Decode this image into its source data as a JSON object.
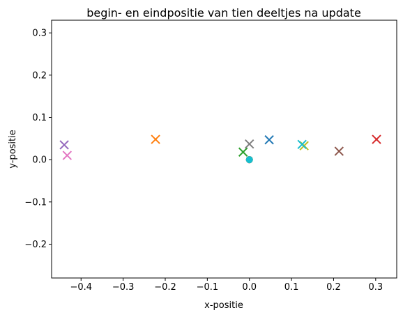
{
  "chart_data": {
    "type": "scatter",
    "title": "begin- en eindpositie van tien deeltjes na update",
    "xlabel": "x-positie",
    "ylabel": "y-positie",
    "xlim": [
      -0.47,
      0.35
    ],
    "ylim": [
      -0.28,
      0.33
    ],
    "grid": false,
    "x_ticks": [
      -0.4,
      -0.3,
      -0.2,
      -0.1,
      0.0,
      0.1,
      0.2,
      0.3
    ],
    "x_tick_labels": [
      "−0.4",
      "−0.3",
      "−0.2",
      "−0.1",
      "0.0",
      "0.1",
      "0.2",
      "0.3"
    ],
    "y_ticks": [
      -0.2,
      -0.1,
      0.0,
      0.1,
      0.2,
      0.3
    ],
    "y_tick_labels": [
      "−0.2",
      "−0.1",
      "0.0",
      "0.1",
      "0.2",
      "0.3"
    ],
    "series": [
      {
        "color": "#1f77b4",
        "start": [
          0.0,
          0.0
        ],
        "end": [
          0.047,
          0.047
        ]
      },
      {
        "color": "#ff7f0e",
        "start": [
          0.0,
          0.0
        ],
        "end": [
          -0.223,
          0.048
        ]
      },
      {
        "color": "#2ca02c",
        "start": [
          0.0,
          0.0
        ],
        "end": [
          -0.015,
          0.018
        ]
      },
      {
        "color": "#d62728",
        "start": [
          0.0,
          0.0
        ],
        "end": [
          0.302,
          0.048
        ]
      },
      {
        "color": "#9467bd",
        "start": [
          0.0,
          0.0
        ],
        "end": [
          -0.44,
          0.035
        ]
      },
      {
        "color": "#8c564b",
        "start": [
          0.0,
          0.0
        ],
        "end": [
          0.213,
          0.02
        ]
      },
      {
        "color": "#e377c2",
        "start": [
          0.0,
          0.0
        ],
        "end": [
          -0.433,
          0.01
        ]
      },
      {
        "color": "#7f7f7f",
        "start": [
          0.0,
          0.0
        ],
        "end": [
          0.0,
          0.037
        ]
      },
      {
        "color": "#bcbd22",
        "start": [
          0.0,
          0.0
        ],
        "end": [
          0.13,
          0.033
        ]
      },
      {
        "color": "#17becf",
        "start": [
          0.0,
          0.0
        ],
        "end": [
          0.125,
          0.036
        ]
      }
    ]
  }
}
